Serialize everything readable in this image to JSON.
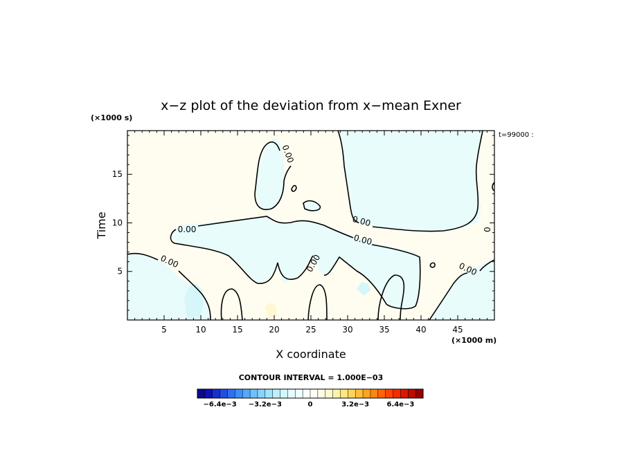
{
  "chart_data": {
    "type": "heatmap",
    "title": "x−z plot of the deviation from x−mean Exner",
    "xlabel": "X coordinate",
    "ylabel": "Time",
    "x_unit": "(×1000 m)",
    "y_unit": "(×1000 s)",
    "timestamp": "t=99000 :",
    "xlim": [
      0,
      50
    ],
    "ylim": [
      0,
      19.5
    ],
    "x_ticks": [
      5,
      10,
      15,
      20,
      25,
      30,
      35,
      40,
      45
    ],
    "y_ticks": [
      5,
      10,
      15
    ],
    "contour_level": 0,
    "contour_interval_text": "CONTOUR INTERVAL = 1.000E−03",
    "contour_labels": [
      "0.00",
      "0.00",
      "0.00",
      "0.00",
      "0.00",
      "0.00",
      "0.00",
      "0"
    ],
    "colorbar": {
      "min": -0.008,
      "max": 0.008,
      "tick_labels": [
        "−6.4e−3",
        "−3.2e−3",
        "0",
        "3.2e−3",
        "6.4e−3"
      ],
      "tick_values": [
        -0.0064,
        -0.0032,
        0,
        0.0032,
        0.0064
      ],
      "colors": [
        "#0a0a8c",
        "#1010b4",
        "#1a2fd0",
        "#1f4fe0",
        "#2e6ff0",
        "#3f8ff8",
        "#55a8ff",
        "#6ec0ff",
        "#88d4ff",
        "#a2e4ff",
        "#bcf0ff",
        "#d2f8ff",
        "#e4fcff",
        "#f0ffff",
        "#f8ffff",
        "#fffff6",
        "#fffce6",
        "#fff8cc",
        "#fff2a8",
        "#ffe680",
        "#ffd45a",
        "#ffbe38",
        "#ffa21e",
        "#ff8410",
        "#ff6408",
        "#ff4404",
        "#f02c00",
        "#d81800",
        "#bc0c00",
        "#960000"
      ]
    },
    "field_colors": {
      "negative": "#e8fcfc",
      "positive": "#fffdf0",
      "negative_strong": "#d6f7fa",
      "positive_strong": "#fff6d2"
    }
  }
}
